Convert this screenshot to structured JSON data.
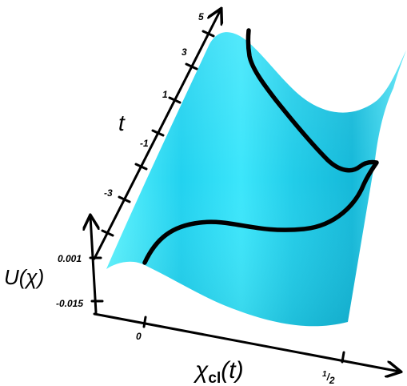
{
  "diagram": {
    "axes": {
      "time": {
        "title": "t",
        "ticks": [
          "5",
          "3",
          "1",
          "-1",
          "-3"
        ]
      },
      "potential": {
        "title": "U(χ)",
        "ticks": [
          "0.001",
          "-0.015"
        ]
      },
      "position": {
        "title_main": "χ",
        "title_sub": "cl",
        "title_suffix": "(t)",
        "ticks": [
          "0"
        ],
        "half_tick": {
          "numerator": "1",
          "denominator": "2"
        }
      }
    },
    "surface": {
      "color_light": "#5ff4ff",
      "color_mid": "#27d8f0",
      "color_dark": "#0aa9c8"
    },
    "trajectory_color": "#000000"
  }
}
